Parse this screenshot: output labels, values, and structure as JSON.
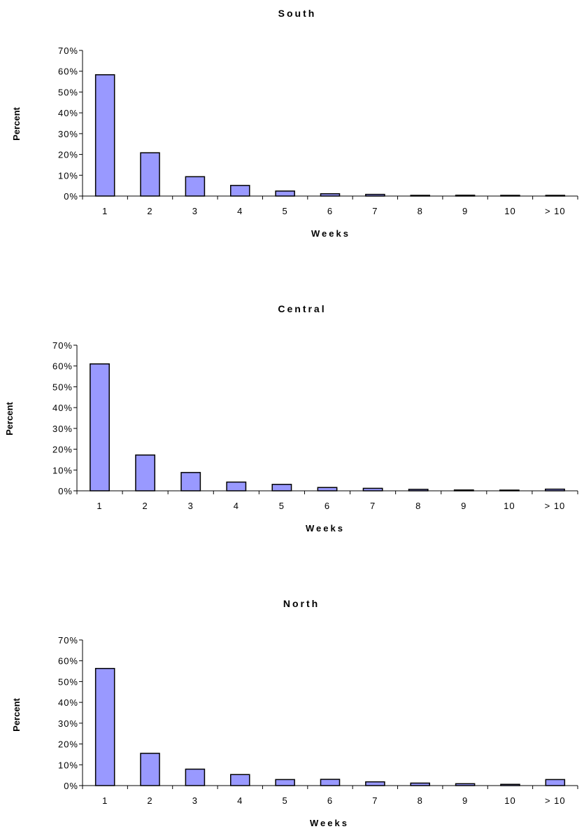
{
  "colors": {
    "bar_fill": "#9999ff",
    "bar_stroke": "#000000",
    "axis": "#000000"
  },
  "chart_data": [
    {
      "type": "bar",
      "title": "South",
      "xlabel": "Weeks",
      "ylabel": "Percent",
      "categories": [
        "1",
        "2",
        "3",
        "4",
        "5",
        "6",
        "7",
        "8",
        "9",
        "10",
        "> 10"
      ],
      "values": [
        58.3,
        20.8,
        9.3,
        5.1,
        2.4,
        1.1,
        0.8,
        0.3,
        0.4,
        0.1,
        0.3
      ],
      "ylim": [
        0,
        70
      ],
      "yticks": [
        "0%",
        "10%",
        "20%",
        "30%",
        "40%",
        "50%",
        "60%",
        "70%"
      ],
      "grid": false
    },
    {
      "type": "bar",
      "title": "Central",
      "xlabel": "Weeks",
      "ylabel": "Percent",
      "categories": [
        "1",
        "2",
        "3",
        "4",
        "5",
        "6",
        "7",
        "8",
        "9",
        "10",
        "> 10"
      ],
      "values": [
        61.0,
        17.2,
        8.8,
        4.2,
        3.1,
        1.6,
        1.2,
        0.7,
        0.4,
        0.3,
        0.8
      ],
      "ylim": [
        0,
        70
      ],
      "yticks": [
        "0%",
        "10%",
        "20%",
        "30%",
        "40%",
        "50%",
        "60%",
        "70%"
      ],
      "grid": false
    },
    {
      "type": "bar",
      "title": "North",
      "xlabel": "Weeks",
      "ylabel": "Percent",
      "categories": [
        "1",
        "2",
        "3",
        "4",
        "5",
        "6",
        "7",
        "8",
        "9",
        "10",
        "> 10"
      ],
      "values": [
        56.3,
        15.5,
        7.9,
        5.3,
        2.9,
        3.0,
        1.8,
        1.2,
        0.9,
        0.6,
        2.9
      ],
      "ylim": [
        0,
        70
      ],
      "yticks": [
        "0%",
        "10%",
        "20%",
        "30%",
        "40%",
        "50%",
        "60%",
        "70%"
      ],
      "grid": false
    }
  ]
}
